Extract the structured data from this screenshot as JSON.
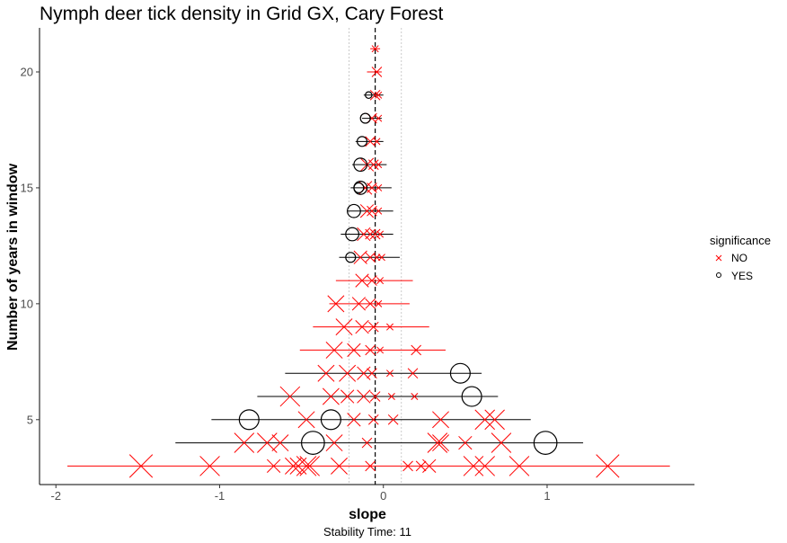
{
  "chart_data": {
    "type": "scatter",
    "title": "Nymph deer tick density in Grid GX, Cary Forest",
    "xlabel": "slope",
    "ylabel": "Number of years in window",
    "caption": "Stability Time: 11",
    "xlim": [
      -2.1,
      1.9
    ],
    "ylim": [
      2.2,
      21.9
    ],
    "x_ticks": [
      -2,
      -1,
      0,
      1
    ],
    "y_ticks": [
      5,
      10,
      15,
      20
    ],
    "grid": false,
    "overall_slope": -0.05,
    "sd_lines": [
      -0.21,
      0.11
    ],
    "legend": {
      "title": "significance",
      "position": "right",
      "entries": [
        {
          "label": "NO",
          "symbol": "x",
          "color": "#ff0000"
        },
        {
          "label": "YES",
          "symbol": "circle",
          "color": "#000000"
        }
      ]
    },
    "colors": {
      "NO": "#ff0000",
      "YES": "#000000"
    },
    "series": [
      {
        "name": "NO",
        "points": [
          {
            "x": -0.05,
            "y": 21,
            "r": 0.02
          },
          {
            "x": -0.04,
            "y": 20,
            "r": 0.03
          },
          {
            "x": -0.05,
            "y": 19,
            "r": 0.03
          },
          {
            "x": -0.03,
            "y": 19,
            "r": 0.02
          },
          {
            "x": -0.07,
            "y": 18,
            "r": 0.03
          },
          {
            "x": -0.03,
            "y": 18,
            "r": 0.02
          },
          {
            "x": -0.08,
            "y": 17,
            "r": 0.03
          },
          {
            "x": -0.04,
            "y": 17,
            "r": 0.02
          },
          {
            "x": -0.1,
            "y": 16,
            "r": 0.04
          },
          {
            "x": -0.06,
            "y": 16,
            "r": 0.03
          },
          {
            "x": -0.03,
            "y": 16,
            "r": 0.02
          },
          {
            "x": -0.11,
            "y": 15,
            "r": 0.04
          },
          {
            "x": -0.07,
            "y": 15,
            "r": 0.03
          },
          {
            "x": -0.03,
            "y": 15,
            "r": 0.02
          },
          {
            "x": -0.1,
            "y": 14,
            "r": 0.04
          },
          {
            "x": -0.07,
            "y": 14,
            "r": 0.03
          },
          {
            "x": -0.03,
            "y": 14,
            "r": 0.02
          },
          {
            "x": -0.12,
            "y": 13,
            "r": 0.04
          },
          {
            "x": -0.08,
            "y": 13,
            "r": 0.03
          },
          {
            "x": -0.05,
            "y": 13,
            "r": 0.03
          },
          {
            "x": -0.02,
            "y": 13,
            "r": 0.02
          },
          {
            "x": -0.14,
            "y": 12,
            "r": 0.04
          },
          {
            "x": -0.08,
            "y": 12,
            "r": 0.03
          },
          {
            "x": -0.04,
            "y": 12,
            "r": 0.02
          },
          {
            "x": -0.01,
            "y": 12,
            "r": 0.02
          },
          {
            "x": -0.13,
            "y": 11,
            "r": 0.04
          },
          {
            "x": -0.07,
            "y": 11,
            "r": 0.03
          },
          {
            "x": -0.02,
            "y": 11,
            "r": 0.02
          },
          {
            "x": -0.29,
            "y": 10,
            "r": 0.05
          },
          {
            "x": -0.15,
            "y": 10,
            "r": 0.04
          },
          {
            "x": -0.08,
            "y": 10,
            "r": 0.03
          },
          {
            "x": -0.03,
            "y": 10,
            "r": 0.02
          },
          {
            "x": -0.24,
            "y": 9,
            "r": 0.05
          },
          {
            "x": -0.13,
            "y": 9,
            "r": 0.04
          },
          {
            "x": -0.06,
            "y": 9,
            "r": 0.03
          },
          {
            "x": 0.04,
            "y": 9,
            "r": 0.02
          },
          {
            "x": -0.3,
            "y": 8,
            "r": 0.05
          },
          {
            "x": -0.18,
            "y": 8,
            "r": 0.04
          },
          {
            "x": -0.08,
            "y": 8,
            "r": 0.03
          },
          {
            "x": -0.02,
            "y": 8,
            "r": 0.02
          },
          {
            "x": 0.2,
            "y": 8,
            "r": 0.03
          },
          {
            "x": -0.35,
            "y": 7,
            "r": 0.05
          },
          {
            "x": -0.22,
            "y": 7,
            "r": 0.05
          },
          {
            "x": -0.12,
            "y": 7,
            "r": 0.04
          },
          {
            "x": -0.07,
            "y": 7,
            "r": 0.03
          },
          {
            "x": 0.04,
            "y": 7,
            "r": 0.02
          },
          {
            "x": 0.18,
            "y": 7,
            "r": 0.03
          },
          {
            "x": -0.57,
            "y": 6,
            "r": 0.06
          },
          {
            "x": -0.32,
            "y": 6,
            "r": 0.05
          },
          {
            "x": -0.22,
            "y": 6,
            "r": 0.04
          },
          {
            "x": -0.12,
            "y": 6,
            "r": 0.04
          },
          {
            "x": -0.05,
            "y": 6,
            "r": 0.03
          },
          {
            "x": 0.05,
            "y": 6,
            "r": 0.02
          },
          {
            "x": 0.19,
            "y": 6,
            "r": 0.02
          },
          {
            "x": -0.47,
            "y": 5,
            "r": 0.05
          },
          {
            "x": -0.18,
            "y": 5,
            "r": 0.04
          },
          {
            "x": -0.06,
            "y": 5,
            "r": 0.03
          },
          {
            "x": 0.06,
            "y": 5,
            "r": 0.03
          },
          {
            "x": 0.35,
            "y": 5,
            "r": 0.05
          },
          {
            "x": 0.62,
            "y": 5,
            "r": 0.06
          },
          {
            "x": 0.68,
            "y": 5,
            "r": 0.06
          },
          {
            "x": -0.85,
            "y": 4,
            "r": 0.06
          },
          {
            "x": -0.71,
            "y": 4,
            "r": 0.06
          },
          {
            "x": -0.63,
            "y": 4,
            "r": 0.05
          },
          {
            "x": -0.3,
            "y": 4,
            "r": 0.05
          },
          {
            "x": -0.1,
            "y": 4,
            "r": 0.03
          },
          {
            "x": 0.33,
            "y": 4,
            "r": 0.06
          },
          {
            "x": 0.35,
            "y": 4,
            "r": 0.05
          },
          {
            "x": 0.5,
            "y": 4,
            "r": 0.04
          },
          {
            "x": 0.72,
            "y": 4,
            "r": 0.06
          },
          {
            "x": -1.48,
            "y": 3,
            "r": 0.07
          },
          {
            "x": -1.06,
            "y": 3,
            "r": 0.06
          },
          {
            "x": -0.67,
            "y": 3,
            "r": 0.04
          },
          {
            "x": -0.55,
            "y": 3,
            "r": 0.05
          },
          {
            "x": -0.52,
            "y": 3,
            "r": 0.05
          },
          {
            "x": -0.47,
            "y": 3,
            "r": 0.06
          },
          {
            "x": -0.45,
            "y": 3,
            "r": 0.06
          },
          {
            "x": -0.27,
            "y": 3,
            "r": 0.05
          },
          {
            "x": -0.08,
            "y": 3,
            "r": 0.03
          },
          {
            "x": 0.15,
            "y": 3,
            "r": 0.03
          },
          {
            "x": 0.23,
            "y": 3,
            "r": 0.03
          },
          {
            "x": 0.28,
            "y": 3,
            "r": 0.04
          },
          {
            "x": 0.55,
            "y": 3,
            "r": 0.06
          },
          {
            "x": 0.62,
            "y": 3,
            "r": 0.06
          },
          {
            "x": 0.83,
            "y": 3,
            "r": 0.06
          },
          {
            "x": 1.37,
            "y": 3,
            "r": 0.07
          }
        ]
      },
      {
        "name": "YES",
        "points": [
          {
            "x": -0.09,
            "y": 19,
            "r": 0.02
          },
          {
            "x": -0.11,
            "y": 18,
            "r": 0.03
          },
          {
            "x": -0.13,
            "y": 17,
            "r": 0.03
          },
          {
            "x": -0.14,
            "y": 16,
            "r": 0.04
          },
          {
            "x": -0.14,
            "y": 15,
            "r": 0.04
          },
          {
            "x": -0.15,
            "y": 15,
            "r": 0.03
          },
          {
            "x": -0.18,
            "y": 14,
            "r": 0.04
          },
          {
            "x": -0.19,
            "y": 13,
            "r": 0.04
          },
          {
            "x": -0.2,
            "y": 12,
            "r": 0.03
          },
          {
            "x": 0.47,
            "y": 7,
            "r": 0.06
          },
          {
            "x": 0.54,
            "y": 6,
            "r": 0.06
          },
          {
            "x": -0.82,
            "y": 5,
            "r": 0.06
          },
          {
            "x": -0.32,
            "y": 5,
            "r": 0.06
          },
          {
            "x": -0.43,
            "y": 4,
            "r": 0.07
          },
          {
            "x": 0.99,
            "y": 4,
            "r": 0.07
          }
        ]
      }
    ],
    "ranges": [
      {
        "y": 21,
        "min": -0.08,
        "max": -0.02,
        "sig": "NO"
      },
      {
        "y": 20,
        "min": -0.1,
        "max": -0.01,
        "sig": "NO"
      },
      {
        "y": 19,
        "min": -0.12,
        "max": 0.0,
        "sig": "YES"
      },
      {
        "y": 18,
        "min": -0.13,
        "max": -0.01,
        "sig": "YES"
      },
      {
        "y": 17,
        "min": -0.17,
        "max": 0.0,
        "sig": "YES"
      },
      {
        "y": 16,
        "min": -0.19,
        "max": 0.02,
        "sig": "YES"
      },
      {
        "y": 15,
        "min": -0.2,
        "max": 0.05,
        "sig": "YES"
      },
      {
        "y": 14,
        "min": -0.22,
        "max": 0.06,
        "sig": "YES"
      },
      {
        "y": 13,
        "min": -0.26,
        "max": 0.06,
        "sig": "YES"
      },
      {
        "y": 12,
        "min": -0.27,
        "max": 0.1,
        "sig": "YES"
      },
      {
        "y": 11,
        "min": -0.29,
        "max": 0.18,
        "sig": "NO"
      },
      {
        "y": 10,
        "min": -0.33,
        "max": 0.16,
        "sig": "NO"
      },
      {
        "y": 9,
        "min": -0.43,
        "max": 0.28,
        "sig": "NO"
      },
      {
        "y": 8,
        "min": -0.51,
        "max": 0.38,
        "sig": "NO"
      },
      {
        "y": 7,
        "min": -0.6,
        "max": 0.6,
        "sig": "YES"
      },
      {
        "y": 6,
        "min": -0.77,
        "max": 0.7,
        "sig": "YES"
      },
      {
        "y": 5,
        "min": -1.05,
        "max": 0.9,
        "sig": "YES"
      },
      {
        "y": 4,
        "min": -1.27,
        "max": 1.22,
        "sig": "YES"
      },
      {
        "y": 3,
        "min": -1.93,
        "max": 1.75,
        "sig": "NO"
      }
    ]
  }
}
